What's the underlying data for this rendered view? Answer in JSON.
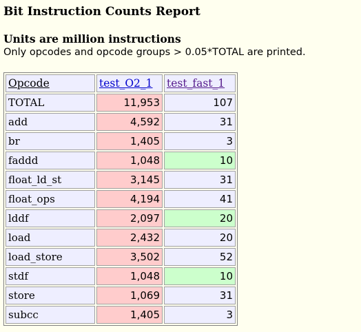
{
  "page": {
    "title": "Bit Instruction Counts Report",
    "subtitle": "Units are million instructions",
    "note": "Only opcodes and opcode groups > 0.05*TOTAL are printed."
  },
  "table": {
    "headers": [
      "Opcode",
      "test_O2_1",
      "test_fast_1"
    ],
    "rows": [
      {
        "opcode": "TOTAL",
        "o2": "11,953",
        "fast": "107",
        "o2_hl": "red",
        "fast_hl": ""
      },
      {
        "opcode": "add",
        "o2": "4,592",
        "fast": "31",
        "o2_hl": "red",
        "fast_hl": ""
      },
      {
        "opcode": "br",
        "o2": "1,405",
        "fast": "3",
        "o2_hl": "red",
        "fast_hl": ""
      },
      {
        "opcode": "faddd",
        "o2": "1,048",
        "fast": "10",
        "o2_hl": "red",
        "fast_hl": "green"
      },
      {
        "opcode": "float_ld_st",
        "o2": "3,145",
        "fast": "31",
        "o2_hl": "red",
        "fast_hl": ""
      },
      {
        "opcode": "float_ops",
        "o2": "4,194",
        "fast": "41",
        "o2_hl": "red",
        "fast_hl": ""
      },
      {
        "opcode": "lddf",
        "o2": "2,097",
        "fast": "20",
        "o2_hl": "red",
        "fast_hl": "green"
      },
      {
        "opcode": "load",
        "o2": "2,432",
        "fast": "20",
        "o2_hl": "red",
        "fast_hl": ""
      },
      {
        "opcode": "load_store",
        "o2": "3,502",
        "fast": "52",
        "o2_hl": "red",
        "fast_hl": ""
      },
      {
        "opcode": "stdf",
        "o2": "1,048",
        "fast": "10",
        "o2_hl": "red",
        "fast_hl": "green"
      },
      {
        "opcode": "store",
        "o2": "1,069",
        "fast": "31",
        "o2_hl": "red",
        "fast_hl": ""
      },
      {
        "opcode": "subcc",
        "o2": "1,405",
        "fast": "3",
        "o2_hl": "red",
        "fast_hl": ""
      }
    ]
  },
  "colors": {
    "page_background": "#ffffef",
    "cell_background": "#eeeeff",
    "highlight_red": "#ffcccc",
    "highlight_green": "#ccffcc",
    "link": "#0000cc",
    "link_visited": "#551a8b"
  }
}
